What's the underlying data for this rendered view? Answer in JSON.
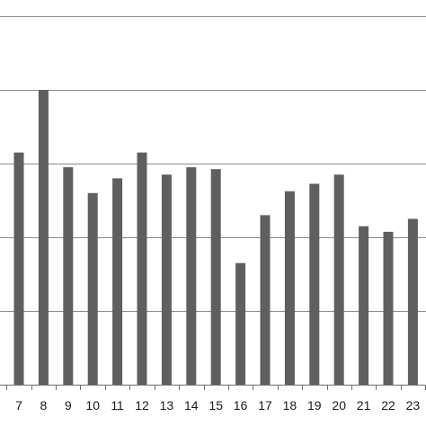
{
  "chart_data": {
    "type": "bar",
    "title": "",
    "xlabel": "",
    "ylabel": "",
    "categories": [
      "7",
      "8",
      "9",
      "10",
      "11",
      "12",
      "13",
      "14",
      "15",
      "16",
      "17",
      "18",
      "19",
      "20",
      "21",
      "22",
      "23"
    ],
    "values": [
      63,
      80,
      59,
      52,
      56,
      63,
      57,
      59,
      58.5,
      33,
      46,
      52.5,
      54.5,
      57,
      43,
      41.5,
      45
    ],
    "ylim": [
      0,
      100
    ],
    "gridlines": [
      20,
      40,
      60,
      80,
      100
    ],
    "grid": true,
    "legend": "none",
    "colors": {
      "bar": "#5f5f5f",
      "grid": "#8a8a8a",
      "axis": "#6e6e6e",
      "text": "#1a1a1a"
    }
  }
}
